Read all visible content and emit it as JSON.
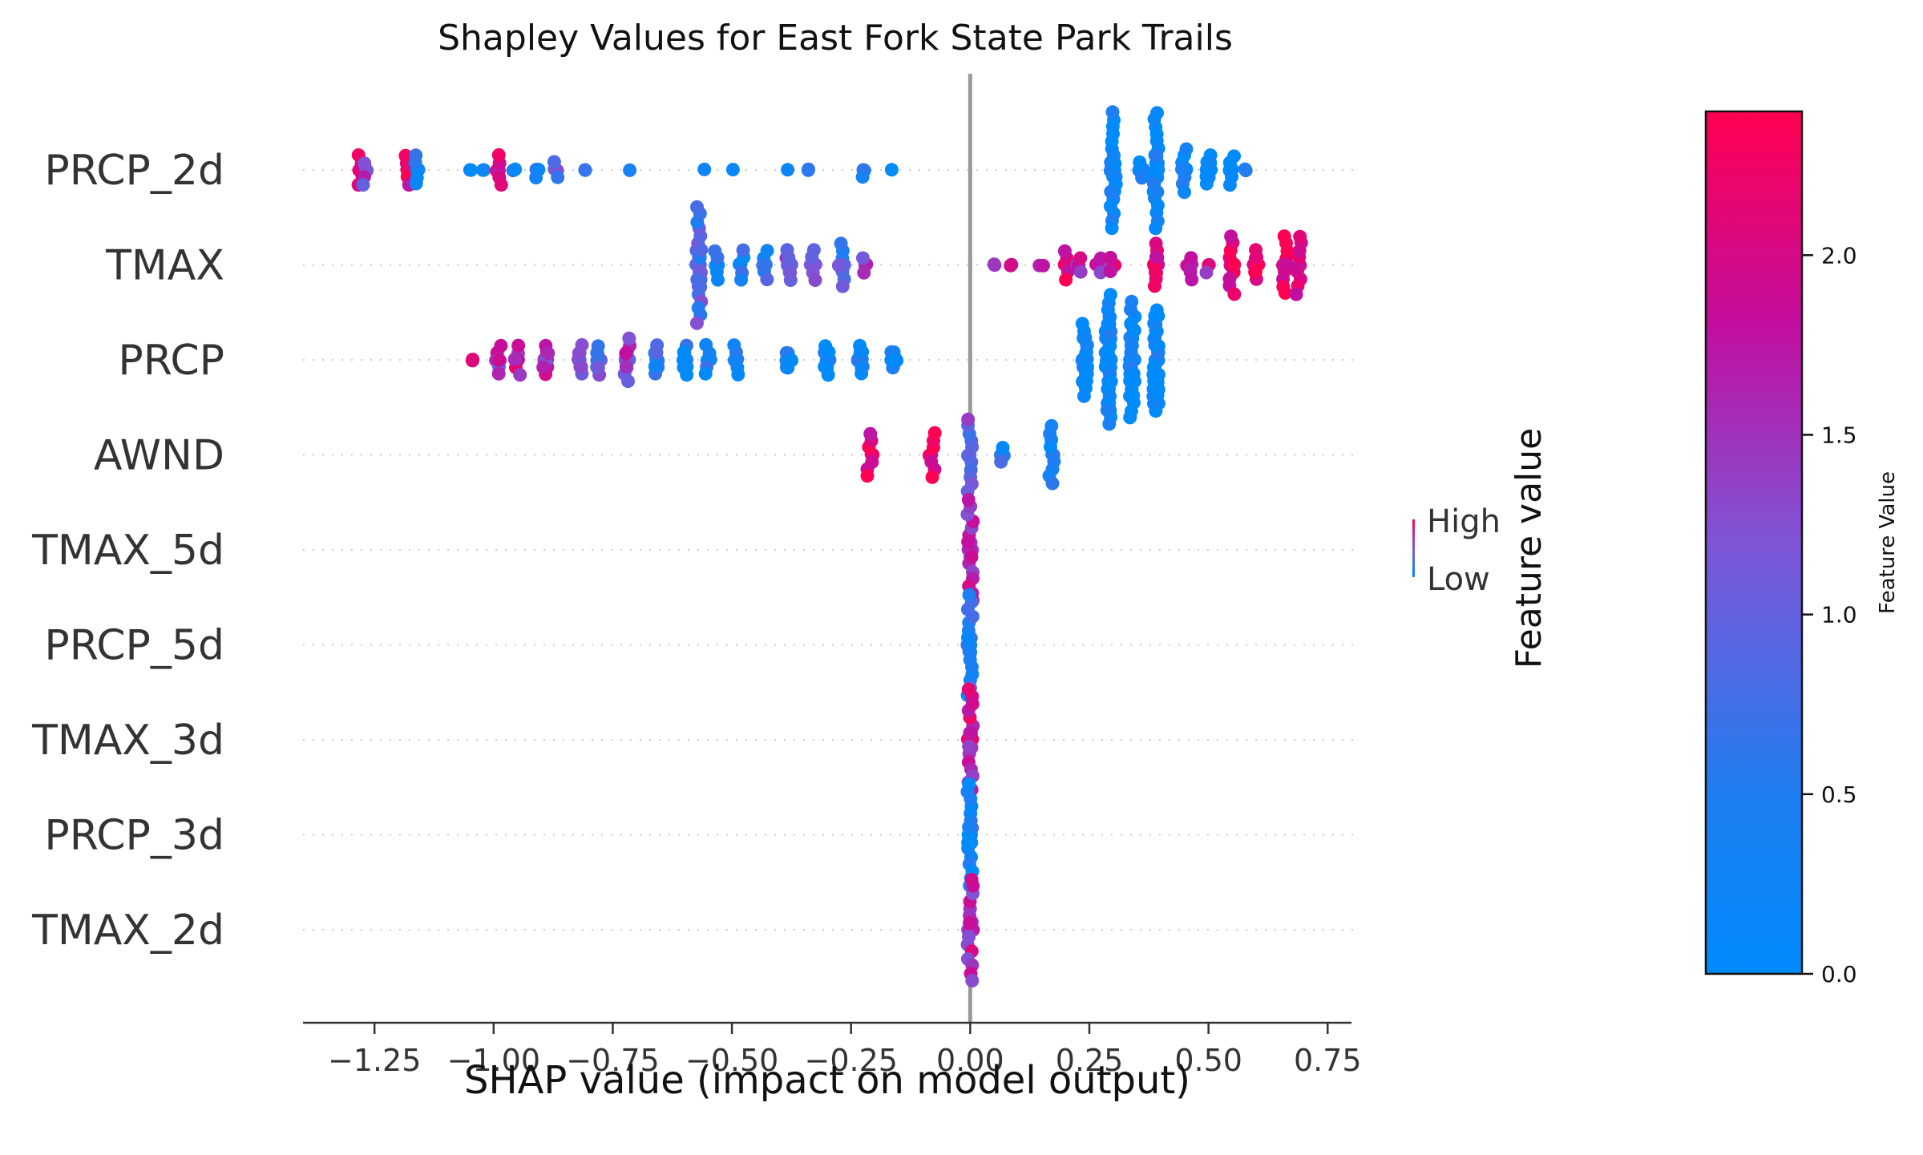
{
  "chart_data": {
    "type": "scatter",
    "subtype": "shap-beeswarm",
    "title": "Shapley Values for East Fork State Park Trails",
    "xlabel": "SHAP value (impact on model output)",
    "ylabel": "",
    "xlim": [
      -1.4,
      0.8
    ],
    "xticks": [
      -1.25,
      -1.0,
      -0.75,
      -0.5,
      -0.25,
      0.0,
      0.25,
      0.5,
      0.75
    ],
    "xtick_labels": [
      "−1.25",
      "−1.00",
      "−0.75",
      "−0.50",
      "−0.25",
      "0.00",
      "0.25",
      "0.50",
      "0.75"
    ],
    "grid": "horizontal dotted row lines",
    "zero_line": 0.0,
    "features": [
      "PRCP_2d",
      "TMAX",
      "PRCP",
      "AWND",
      "TMAX_5d",
      "PRCP_5d",
      "TMAX_3d",
      "PRCP_3d",
      "TMAX_2d"
    ],
    "feature_clusters": [
      {
        "feature": "PRCP_2d",
        "clusters": [
          [
            -1.28,
            6,
            2.0,
            3
          ],
          [
            -1.27,
            5,
            1.3,
            2
          ],
          [
            -1.18,
            6,
            2.1,
            3
          ],
          [
            -1.16,
            6,
            0.4,
            2
          ],
          [
            -1.05,
            2,
            0.3,
            1
          ],
          [
            -1.02,
            2,
            0.3,
            1
          ],
          [
            -0.99,
            6,
            2.1,
            4
          ],
          [
            -0.96,
            2,
            0.5,
            1
          ],
          [
            -0.91,
            3,
            0.4,
            1
          ],
          [
            -0.87,
            4,
            0.8,
            2
          ],
          [
            -0.81,
            2,
            0.3,
            1
          ],
          [
            -0.71,
            1,
            0.3,
            1
          ],
          [
            -0.56,
            1,
            0.3,
            1
          ],
          [
            -0.5,
            1,
            0.3,
            1
          ],
          [
            -0.38,
            1,
            0.3,
            1
          ],
          [
            -0.34,
            2,
            0.3,
            1
          ],
          [
            -0.22,
            3,
            0.3,
            1
          ],
          [
            -0.16,
            1,
            0.3,
            1
          ],
          [
            0.3,
            25,
            0.1,
            8
          ],
          [
            0.36,
            4,
            0.1,
            3
          ],
          [
            0.39,
            25,
            0.1,
            8
          ],
          [
            0.45,
            10,
            0.1,
            3
          ],
          [
            0.5,
            10,
            0.1,
            2
          ],
          [
            0.55,
            6,
            0.1,
            2
          ],
          [
            0.58,
            2,
            0.1,
            1
          ]
        ]
      },
      {
        "feature": "TMAX",
        "clusters": [
          [
            -0.57,
            25,
            0.85,
            8
          ],
          [
            -0.53,
            6,
            0.6,
            2
          ],
          [
            -0.48,
            6,
            0.4,
            2
          ],
          [
            -0.43,
            8,
            0.6,
            2
          ],
          [
            -0.38,
            10,
            1.2,
            2
          ],
          [
            -0.33,
            6,
            1.0,
            2
          ],
          [
            -0.27,
            10,
            0.7,
            3
          ],
          [
            -0.22,
            4,
            1.3,
            2
          ],
          [
            0.05,
            2,
            1.5,
            1
          ],
          [
            0.09,
            2,
            1.8,
            1
          ],
          [
            0.15,
            2,
            1.5,
            1
          ],
          [
            0.2,
            6,
            2.0,
            3
          ],
          [
            0.23,
            4,
            1.6,
            2
          ],
          [
            0.27,
            4,
            1.4,
            2
          ],
          [
            0.3,
            4,
            1.8,
            2
          ],
          [
            0.39,
            12,
            2.2,
            3
          ],
          [
            0.46,
            5,
            2.1,
            2
          ],
          [
            0.5,
            3,
            1.8,
            1
          ],
          [
            0.55,
            12,
            2.2,
            4
          ],
          [
            0.6,
            10,
            2.2,
            2
          ],
          [
            0.66,
            12,
            2.2,
            4
          ],
          [
            0.69,
            10,
            2.2,
            5
          ]
        ]
      },
      {
        "feature": "PRCP",
        "clusters": [
          [
            -1.05,
            2,
            2.0,
            1
          ],
          [
            -0.99,
            8,
            1.5,
            2
          ],
          [
            -0.95,
            8,
            1.8,
            2
          ],
          [
            -0.89,
            10,
            1.6,
            2
          ],
          [
            -0.82,
            10,
            1.2,
            2
          ],
          [
            -0.78,
            10,
            1.0,
            2
          ],
          [
            -0.72,
            12,
            1.4,
            3
          ],
          [
            -0.66,
            10,
            0.5,
            2
          ],
          [
            -0.6,
            10,
            0.3,
            2
          ],
          [
            -0.55,
            6,
            0.3,
            2
          ],
          [
            -0.49,
            8,
            0.3,
            2
          ],
          [
            -0.38,
            10,
            0.2,
            1
          ],
          [
            -0.3,
            10,
            0.2,
            2
          ],
          [
            -0.23,
            10,
            0.2,
            2
          ],
          [
            -0.16,
            10,
            0.2,
            1
          ],
          [
            0.24,
            20,
            0.1,
            5
          ],
          [
            0.29,
            35,
            0.1,
            9
          ],
          [
            0.34,
            30,
            0.1,
            8
          ],
          [
            0.39,
            30,
            0.1,
            7
          ]
        ]
      },
      {
        "feature": "AWND",
        "clusters": [
          [
            -0.21,
            8,
            2.2,
            5
          ],
          [
            -0.08,
            8,
            2.2,
            5
          ],
          [
            0.0,
            12,
            1.1,
            6
          ],
          [
            0.07,
            4,
            0.4,
            3
          ],
          [
            0.17,
            10,
            0.3,
            7
          ]
        ]
      },
      {
        "feature": "TMAX_5d",
        "clusters": [
          [
            0.0,
            20,
            1.6,
            7
          ]
        ]
      },
      {
        "feature": "PRCP_5d",
        "clusters": [
          [
            0.0,
            20,
            0.5,
            7
          ]
        ]
      },
      {
        "feature": "TMAX_3d",
        "clusters": [
          [
            0.0,
            20,
            1.8,
            7
          ]
        ]
      },
      {
        "feature": "PRCP_3d",
        "clusters": [
          [
            0.0,
            20,
            0.3,
            7
          ]
        ]
      },
      {
        "feature": "TMAX_2d",
        "clusters": [
          [
            0.0,
            20,
            1.6,
            7
          ]
        ]
      }
    ],
    "cluster_format": "[shap_value, point_count, mean_feature_value, vertical_spread]",
    "colorbar": {
      "label": "Feature Value",
      "range": [
        0.0,
        2.4
      ],
      "ticks": [
        0.0,
        0.5,
        1.0,
        1.5,
        2.0
      ],
      "tick_labels": [
        "0.0",
        "0.5",
        "1.0",
        "1.5",
        "2.0"
      ],
      "low_color": "#008bfb",
      "mid_color": "#7f55d6",
      "high_color": "#ff0052"
    },
    "legend": {
      "title": "Feature value",
      "high_label": "High",
      "low_label": "Low",
      "placement": "right"
    }
  },
  "colors": {
    "axis": "#333333",
    "grid": "#cccccc",
    "zero_line": "#999999"
  }
}
